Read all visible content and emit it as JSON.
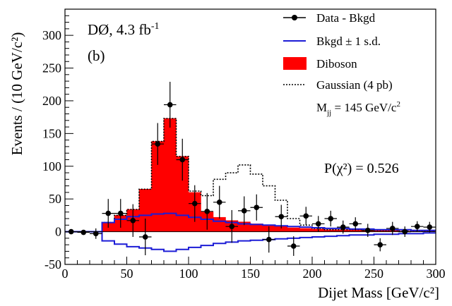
{
  "chart_data": {
    "type": "histogram",
    "xlabel": "Dijet Mass [GeV/c²]",
    "ylabel": "Events / (10 GeV/c²)",
    "xlim": [
      0,
      300
    ],
    "ylim": [
      -50,
      340
    ],
    "x_ticks": [
      "0",
      "50",
      "100",
      "150",
      "200",
      "250",
      "300"
    ],
    "y_ticks": [
      "-50",
      "0",
      "50",
      "100",
      "150",
      "200",
      "250",
      "300"
    ],
    "annotations": {
      "experiment": "DØ, 4.3 fb",
      "experiment_sup": "-1",
      "panel": "(b)",
      "chi2": "P(χ²) = 0.526"
    },
    "legend": {
      "data": "Data - Bkgd",
      "bkgd": "Bkgd ± 1 s.d.",
      "diboson": "Diboson",
      "gaussian": "Gaussian (4 pb)",
      "mjj_prefix": "M",
      "mjj_sub": "jj",
      "mjj_suffix": " = 145 GeV/c",
      "mjj_sup": "2"
    },
    "colors": {
      "data": "#000000",
      "bkgd": "#1c1cd6",
      "diboson": "#ff0000",
      "gaussian": "#000000"
    },
    "bin_edges": [
      0,
      10,
      20,
      30,
      40,
      50,
      60,
      70,
      80,
      90,
      100,
      110,
      120,
      130,
      140,
      150,
      160,
      170,
      180,
      190,
      200,
      210,
      220,
      230,
      240,
      250,
      260,
      270,
      280,
      290,
      300
    ],
    "diboson": [
      0,
      0,
      0,
      14,
      25,
      34,
      65,
      138,
      173,
      115,
      60,
      30,
      22,
      17,
      15,
      12,
      10,
      8,
      6,
      5,
      4,
      3,
      3,
      3,
      2,
      2,
      2,
      1,
      1,
      1
    ],
    "gaussian": [
      0,
      0,
      0,
      14,
      25,
      34,
      65,
      138,
      173,
      115,
      62,
      55,
      80,
      90,
      102,
      88,
      70,
      48,
      20,
      10,
      5,
      3,
      3,
      3,
      2,
      2,
      2,
      1,
      1,
      1
    ],
    "bkgd_upper": [
      0,
      0,
      0,
      14,
      19,
      23,
      25,
      27,
      28,
      25,
      22,
      19,
      16,
      14,
      12,
      11,
      10,
      9,
      8,
      7,
      6,
      5,
      5,
      4,
      4,
      3,
      3,
      3,
      2,
      2
    ],
    "bkgd_lower": [
      0,
      0,
      0,
      -14,
      -19,
      -23,
      -25,
      -27,
      -30,
      -27,
      -24,
      -21,
      -18,
      -16,
      -14,
      -13,
      -12,
      -11,
      -10,
      -9,
      -8,
      -7,
      -6,
      -5,
      -5,
      -4,
      -4,
      -3,
      -3,
      -2
    ],
    "data": [
      {
        "x": 5,
        "y": 0,
        "err": 2
      },
      {
        "x": 15,
        "y": -1,
        "err": 3
      },
      {
        "x": 25,
        "y": -3,
        "err": 8
      },
      {
        "x": 35,
        "y": 28,
        "err": 22
      },
      {
        "x": 45,
        "y": 28,
        "err": 22
      },
      {
        "x": 55,
        "y": 17,
        "err": 25
      },
      {
        "x": 65,
        "y": -8,
        "err": 28
      },
      {
        "x": 75,
        "y": 134,
        "err": 32
      },
      {
        "x": 85,
        "y": 194,
        "err": 35
      },
      {
        "x": 95,
        "y": 110,
        "err": 32
      },
      {
        "x": 105,
        "y": 43,
        "err": 28
      },
      {
        "x": 115,
        "y": 31,
        "err": 28
      },
      {
        "x": 125,
        "y": 45,
        "err": 25
      },
      {
        "x": 135,
        "y": 8,
        "err": 25
      },
      {
        "x": 145,
        "y": 32,
        "err": 22
      },
      {
        "x": 155,
        "y": 37,
        "err": 20
      },
      {
        "x": 165,
        "y": -12,
        "err": 20
      },
      {
        "x": 175,
        "y": 23,
        "err": 18
      },
      {
        "x": 185,
        "y": -22,
        "err": 15
      },
      {
        "x": 195,
        "y": 24,
        "err": 14
      },
      {
        "x": 205,
        "y": 12,
        "err": 12
      },
      {
        "x": 215,
        "y": 20,
        "err": 12
      },
      {
        "x": 225,
        "y": 7,
        "err": 10
      },
      {
        "x": 235,
        "y": 12,
        "err": 10
      },
      {
        "x": 245,
        "y": 2,
        "err": 10
      },
      {
        "x": 255,
        "y": -20,
        "err": 10
      },
      {
        "x": 265,
        "y": 5,
        "err": 10
      },
      {
        "x": 275,
        "y": 0,
        "err": 8
      },
      {
        "x": 285,
        "y": 8,
        "err": 8
      },
      {
        "x": 295,
        "y": 7,
        "err": 8
      }
    ]
  }
}
